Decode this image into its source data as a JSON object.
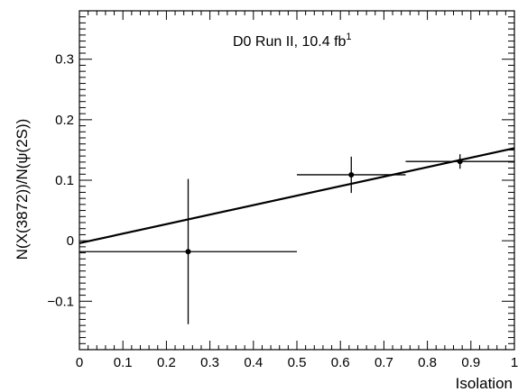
{
  "chart_data": {
    "type": "scatter",
    "xlabel": "Isolation",
    "ylabel": "N(X(3872))/N(ψ(2S))",
    "annotation": "D0 Run II, 10.4 fb",
    "annotation_superscript": "1",
    "xlim": [
      0,
      1
    ],
    "ylim": [
      -0.18,
      0.38
    ],
    "x_ticks": [
      0,
      0.1,
      0.2,
      0.3,
      0.4,
      0.5,
      0.6,
      0.7,
      0.8,
      0.9,
      1
    ],
    "x_tick_labels": [
      "0",
      "0.1",
      "0.2",
      "0.3",
      "0.4",
      "0.5",
      "0.6",
      "0.7",
      "0.8",
      "0.9",
      "1"
    ],
    "y_ticks": [
      -0.1,
      0,
      0.1,
      0.2,
      0.3
    ],
    "y_tick_labels": [
      "−0.1",
      "0",
      "0.1",
      "0.2",
      "0.3"
    ],
    "points": [
      {
        "x": 0.25,
        "y": -0.018,
        "x_err": 0.25,
        "y_err": 0.12
      },
      {
        "x": 0.625,
        "y": 0.109,
        "x_err": 0.125,
        "y_err": 0.03
      },
      {
        "x": 0.875,
        "y": 0.131,
        "x_err": 0.125,
        "y_err": 0.012
      }
    ],
    "fit_line": {
      "x": [
        0,
        1
      ],
      "y": [
        -0.004,
        0.153
      ]
    },
    "grid": false,
    "legend": "none"
  }
}
